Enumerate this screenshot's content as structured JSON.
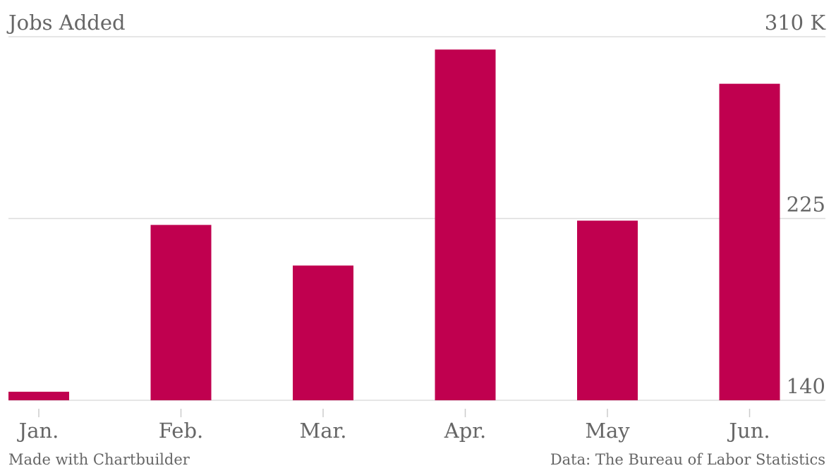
{
  "chart_data": {
    "type": "bar",
    "title": "Jobs Added",
    "categories": [
      "Jan.",
      "Feb.",
      "Mar.",
      "Apr.",
      "May",
      "Jun."
    ],
    "values": [
      144,
      222,
      203,
      304,
      224,
      288
    ],
    "color": "#c0004f",
    "ylim": [
      140,
      310
    ],
    "yticks": [
      140,
      225,
      {
        "value": 310,
        "label": "310 K"
      }
    ],
    "grid": true,
    "footer_left": "Made with Chartbuilder",
    "footer_right": "Data: The Bureau of Labor Statistics"
  }
}
